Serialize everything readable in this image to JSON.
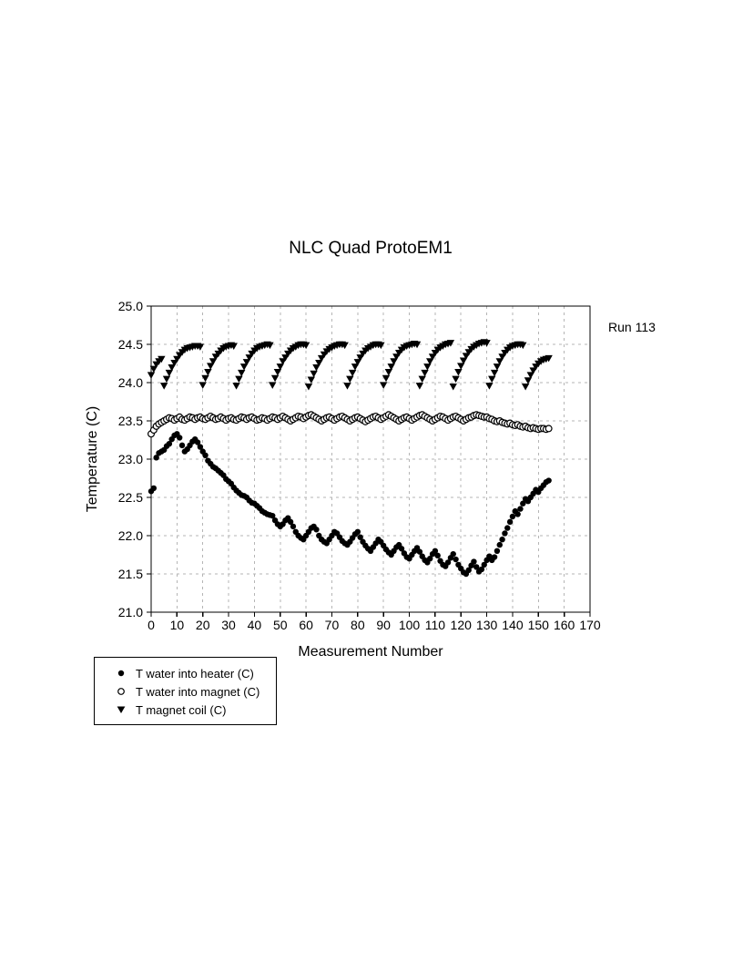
{
  "annotation": "Run 113",
  "colors": {
    "foreground": "#000000",
    "background": "#ffffff",
    "gridline": "#b5b5b5"
  },
  "chart_data": {
    "type": "scatter",
    "title": "NLC Quad ProtoEM1",
    "xlabel": "Measurement Number",
    "ylabel": "Temperature (C)",
    "xlim": [
      0,
      170
    ],
    "ylim": [
      21.0,
      25.0
    ],
    "grid": true,
    "legend_position": "below-left-outside",
    "x_ticks": [
      0,
      10,
      20,
      30,
      40,
      50,
      60,
      70,
      80,
      90,
      100,
      110,
      120,
      130,
      140,
      150,
      160,
      170
    ],
    "y_ticks": [
      "21.0",
      "21.5",
      "22.0",
      "22.5",
      "23.0",
      "23.5",
      "24.0",
      "24.5",
      "25.0"
    ],
    "series": [
      {
        "name": "T water into heater (C)",
        "marker": "filled-circle",
        "x_start": 0,
        "x_step": 1,
        "y": [
          22.58,
          22.62,
          23.02,
          23.08,
          23.1,
          23.12,
          23.17,
          23.2,
          23.26,
          23.31,
          23.33,
          23.28,
          23.18,
          23.1,
          23.13,
          23.18,
          23.23,
          23.26,
          23.22,
          23.16,
          23.1,
          23.05,
          22.98,
          22.94,
          22.9,
          22.88,
          22.85,
          22.82,
          22.79,
          22.74,
          22.71,
          22.68,
          22.63,
          22.59,
          22.56,
          22.53,
          22.52,
          22.5,
          22.46,
          22.43,
          22.42,
          22.39,
          22.36,
          22.32,
          22.3,
          22.28,
          22.27,
          22.26,
          22.2,
          22.15,
          22.12,
          22.15,
          22.2,
          22.23,
          22.18,
          22.12,
          22.05,
          22.0,
          21.97,
          21.95,
          22.0,
          22.05,
          22.1,
          22.12,
          22.08,
          22.0,
          21.95,
          21.92,
          21.9,
          21.95,
          22.0,
          22.05,
          22.03,
          21.98,
          21.93,
          21.9,
          21.88,
          21.92,
          21.97,
          22.02,
          22.05,
          21.98,
          21.92,
          21.87,
          21.83,
          21.8,
          21.85,
          21.9,
          21.95,
          21.92,
          21.87,
          21.82,
          21.78,
          21.75,
          21.8,
          21.85,
          21.88,
          21.83,
          21.77,
          21.72,
          21.7,
          21.75,
          21.8,
          21.84,
          21.79,
          21.73,
          21.68,
          21.65,
          21.7,
          21.76,
          21.8,
          21.74,
          21.67,
          21.62,
          21.6,
          21.65,
          21.71,
          21.76,
          21.69,
          21.62,
          21.57,
          21.52,
          21.5,
          21.55,
          21.61,
          21.66,
          21.59,
          21.53,
          21.56,
          21.62,
          21.68,
          21.73,
          21.68,
          21.72,
          21.8,
          21.88,
          21.95,
          22.03,
          22.1,
          22.18,
          22.25,
          22.32,
          22.28,
          22.35,
          22.42,
          22.48,
          22.45,
          22.5,
          22.55,
          22.6,
          22.57,
          22.62,
          22.66,
          22.7,
          22.72
        ]
      },
      {
        "name": "T water into magnet (C)",
        "marker": "open-circle",
        "x_start": 0,
        "x_step": 1,
        "y": [
          23.33,
          23.38,
          23.43,
          23.46,
          23.48,
          23.5,
          23.52,
          23.54,
          23.53,
          23.51,
          23.53,
          23.55,
          23.52,
          23.51,
          23.53,
          23.55,
          23.54,
          23.52,
          23.54,
          23.55,
          23.53,
          23.52,
          23.54,
          23.56,
          23.54,
          23.52,
          23.53,
          23.55,
          23.53,
          23.51,
          23.53,
          23.54,
          23.52,
          23.51,
          23.53,
          23.55,
          23.54,
          23.52,
          23.54,
          23.55,
          23.53,
          23.51,
          23.52,
          23.54,
          23.53,
          23.51,
          23.53,
          23.55,
          23.54,
          23.52,
          23.54,
          23.56,
          23.54,
          23.52,
          23.5,
          23.52,
          23.54,
          23.56,
          23.55,
          23.53,
          23.55,
          23.57,
          23.58,
          23.56,
          23.54,
          23.52,
          23.5,
          23.52,
          23.54,
          23.55,
          23.53,
          23.51,
          23.53,
          23.55,
          23.56,
          23.54,
          23.52,
          23.5,
          23.52,
          23.54,
          23.55,
          23.53,
          23.51,
          23.49,
          23.51,
          23.53,
          23.55,
          23.56,
          23.54,
          23.52,
          23.54,
          23.56,
          23.58,
          23.56,
          23.54,
          23.52,
          23.5,
          23.52,
          23.54,
          23.55,
          23.53,
          23.51,
          23.53,
          23.55,
          23.57,
          23.58,
          23.56,
          23.54,
          23.52,
          23.5,
          23.52,
          23.54,
          23.56,
          23.55,
          23.53,
          23.51,
          23.53,
          23.55,
          23.56,
          23.54,
          23.52,
          23.5,
          23.52,
          23.54,
          23.55,
          23.57,
          23.58,
          23.57,
          23.56,
          23.55,
          23.55,
          23.53,
          23.52,
          23.5,
          23.49,
          23.5,
          23.48,
          23.47,
          23.46,
          23.47,
          23.45,
          23.44,
          23.45,
          23.43,
          23.42,
          23.43,
          23.41,
          23.4,
          23.41,
          23.4,
          23.39,
          23.4,
          23.4,
          23.39,
          23.4
        ]
      },
      {
        "name": "T magnet coil (C)",
        "marker": "filled-triangle-down",
        "x_start": 0,
        "x_step": 1,
        "y": [
          24.1,
          24.18,
          24.24,
          24.28,
          24.31,
          23.96,
          24.05,
          24.13,
          24.2,
          24.26,
          24.31,
          24.36,
          24.4,
          24.43,
          24.45,
          24.46,
          24.47,
          24.48,
          24.48,
          24.47,
          23.97,
          24.06,
          24.14,
          24.22,
          24.28,
          24.34,
          24.38,
          24.42,
          24.45,
          24.47,
          24.48,
          24.49,
          24.48,
          23.96,
          24.05,
          24.13,
          24.21,
          24.27,
          24.33,
          24.38,
          24.42,
          24.45,
          24.47,
          24.48,
          24.49,
          24.5,
          24.49,
          23.97,
          24.06,
          24.14,
          24.21,
          24.28,
          24.33,
          24.38,
          24.42,
          24.45,
          24.47,
          24.49,
          24.5,
          24.5,
          24.49,
          23.95,
          24.04,
          24.12,
          24.2,
          24.26,
          24.32,
          24.37,
          24.41,
          24.44,
          24.46,
          24.48,
          24.49,
          24.5,
          24.5,
          24.49,
          23.96,
          24.05,
          24.13,
          24.21,
          24.27,
          24.33,
          24.38,
          24.42,
          24.45,
          24.47,
          24.49,
          24.5,
          24.5,
          24.49,
          23.97,
          24.06,
          24.14,
          24.21,
          24.28,
          24.34,
          24.39,
          24.43,
          24.46,
          24.48,
          24.49,
          24.5,
          24.51,
          24.5,
          23.96,
          24.05,
          24.13,
          24.21,
          24.28,
          24.34,
          24.39,
          24.43,
          24.46,
          24.48,
          24.5,
          24.51,
          24.52,
          23.95,
          24.05,
          24.14,
          24.22,
          24.29,
          24.35,
          24.4,
          24.44,
          24.47,
          24.49,
          24.51,
          24.52,
          24.53,
          24.52,
          23.96,
          24.05,
          24.13,
          24.21,
          24.28,
          24.34,
          24.39,
          24.43,
          24.46,
          24.48,
          24.49,
          24.5,
          24.5,
          24.49,
          23.95,
          24.03,
          24.1,
          24.16,
          24.21,
          24.25,
          24.28,
          24.3,
          24.31,
          24.32
        ]
      }
    ]
  }
}
